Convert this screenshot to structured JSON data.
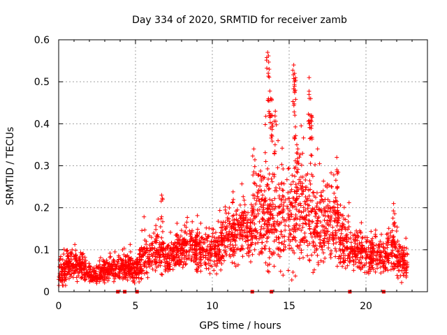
{
  "chart_data": {
    "type": "scatter",
    "title": "Day 334 of 2020, SRMTID for receiver zamb",
    "xlabel": "GPS time / hours",
    "ylabel": "SRMTID / TECUs",
    "xlim": [
      0,
      24
    ],
    "ylim": [
      0,
      0.6
    ],
    "x_ticks": [
      0,
      5,
      10,
      15,
      20
    ],
    "x_tick_labels": [
      "0",
      "5",
      "10",
      "15",
      "20"
    ],
    "y_ticks": [
      0,
      0.1,
      0.2,
      0.3,
      0.4,
      0.5,
      0.6
    ],
    "y_tick_labels": [
      "0",
      "0.1",
      "0.2",
      "0.3",
      "0.4",
      "0.5",
      "0.6"
    ],
    "grid": true,
    "marker": "+",
    "marker_color": "#ff0000",
    "baseline_markers_x": [
      3.85,
      4.3,
      5.1,
      12.6,
      13.85,
      18.95,
      21.15
    ],
    "series": [
      {
        "name": "SRMTID",
        "color": "#ff0000",
        "profile": {
          "x": [
            0,
            0.5,
            1,
            1.5,
            2,
            2.5,
            3,
            3.5,
            4,
            4.5,
            5,
            5.5,
            6,
            6.5,
            7,
            7.5,
            8,
            8.5,
            9,
            9.5,
            10,
            10.5,
            11,
            11.5,
            12,
            12.5,
            13,
            13.5,
            14,
            14.5,
            15,
            15.5,
            16,
            16.5,
            17,
            17.5,
            18,
            18.5,
            19,
            19.5,
            20,
            20.5,
            21,
            21.5,
            22,
            22.5
          ],
          "median": [
            0.04,
            0.06,
            0.065,
            0.06,
            0.045,
            0.04,
            0.05,
            0.055,
            0.05,
            0.06,
            0.05,
            0.08,
            0.09,
            0.1,
            0.08,
            0.085,
            0.1,
            0.11,
            0.1,
            0.095,
            0.095,
            0.11,
            0.14,
            0.13,
            0.15,
            0.14,
            0.19,
            0.2,
            0.16,
            0.17,
            0.17,
            0.2,
            0.2,
            0.16,
            0.15,
            0.17,
            0.16,
            0.12,
            0.1,
            0.1,
            0.09,
            0.09,
            0.08,
            0.1,
            0.09,
            0.07
          ],
          "spread": [
            0.03,
            0.04,
            0.04,
            0.035,
            0.025,
            0.02,
            0.03,
            0.03,
            0.03,
            0.04,
            0.035,
            0.05,
            0.05,
            0.06,
            0.04,
            0.045,
            0.05,
            0.05,
            0.05,
            0.05,
            0.05,
            0.06,
            0.07,
            0.07,
            0.07,
            0.07,
            0.12,
            0.14,
            0.12,
            0.12,
            0.12,
            0.14,
            0.14,
            0.11,
            0.1,
            0.1,
            0.1,
            0.07,
            0.06,
            0.06,
            0.05,
            0.05,
            0.05,
            0.06,
            0.06,
            0.04
          ],
          "points_per_segment": 60
        },
        "peaks": [
          {
            "x": 6.7,
            "y": 0.23
          },
          {
            "x": 12.7,
            "y": 0.34
          },
          {
            "x": 13.6,
            "y": 0.57
          },
          {
            "x": 13.7,
            "y": 0.53
          },
          {
            "x": 13.8,
            "y": 0.46
          },
          {
            "x": 13.9,
            "y": 0.42
          },
          {
            "x": 14.1,
            "y": 0.43
          },
          {
            "x": 15.3,
            "y": 0.54
          },
          {
            "x": 15.35,
            "y": 0.52
          },
          {
            "x": 15.4,
            "y": 0.48
          },
          {
            "x": 15.5,
            "y": 0.35
          },
          {
            "x": 16.3,
            "y": 0.51
          },
          {
            "x": 16.4,
            "y": 0.46
          },
          {
            "x": 16.45,
            "y": 0.42
          },
          {
            "x": 18.1,
            "y": 0.32
          },
          {
            "x": 21.8,
            "y": 0.21
          }
        ]
      }
    ]
  }
}
